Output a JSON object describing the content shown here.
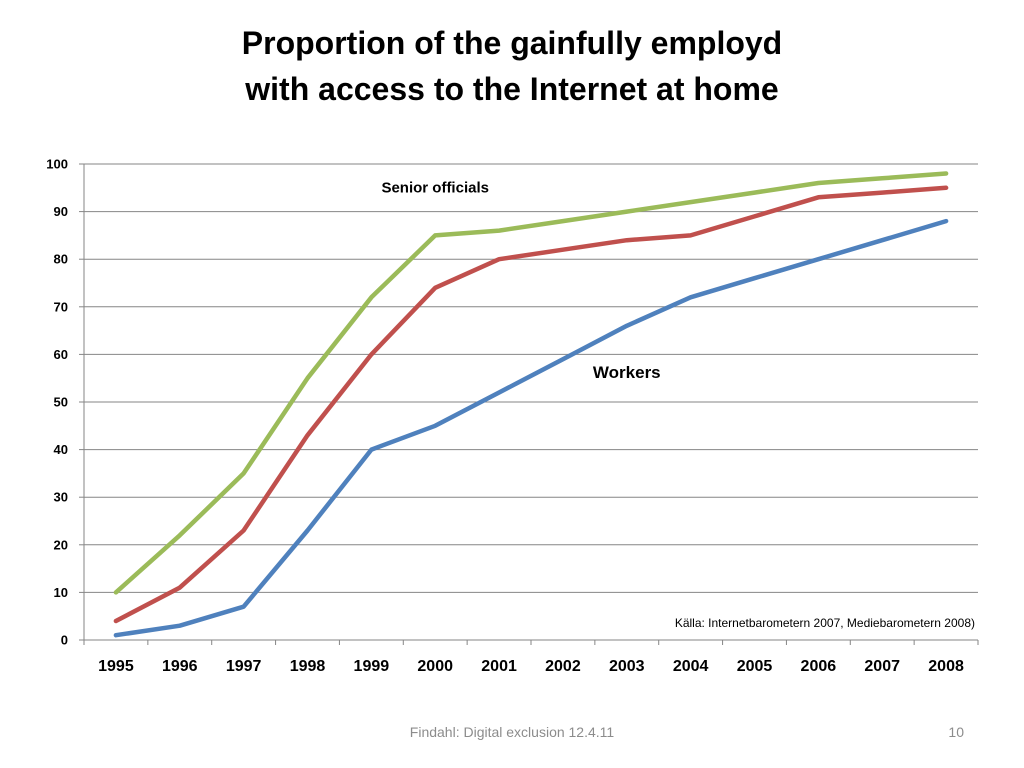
{
  "slide": {
    "title_line1": "Proportion of the gainfully employd",
    "title_line2": "with access to the Internet at home",
    "footer": "Findahl: Digital exclusion 12.4.11",
    "page_number": "10"
  },
  "chart_data": {
    "type": "line",
    "title": "Proportion of the gainfully employd with access to the Internet at home",
    "xlabel": "",
    "ylabel": "",
    "x": [
      "1995",
      "1996",
      "1997",
      "1998",
      "1999",
      "2000",
      "2001",
      "2002",
      "2003",
      "2004",
      "2005",
      "2006",
      "2007",
      "2008"
    ],
    "ylim": [
      0,
      100
    ],
    "yticks": [
      0,
      10,
      20,
      30,
      40,
      50,
      60,
      70,
      80,
      90,
      100
    ],
    "grid": true,
    "series": [
      {
        "key": "green",
        "color": "#9bbb59",
        "values": [
          10,
          22,
          35,
          55,
          72,
          85,
          86,
          88,
          90,
          92,
          94,
          96,
          97,
          98
        ]
      },
      {
        "key": "red",
        "color": "#c0504d",
        "values": [
          4,
          11,
          23,
          43,
          60,
          74,
          80,
          82,
          84,
          85,
          89,
          93,
          94,
          95
        ]
      },
      {
        "key": "blue",
        "color": "#4f81bd",
        "values": [
          1,
          3,
          7,
          23,
          40,
          45,
          52,
          59,
          66,
          72,
          76,
          80,
          84,
          88
        ]
      }
    ],
    "annotations": [
      {
        "text": "Senior officials",
        "x": "2000",
        "y": 94
      },
      {
        "text": "Workers",
        "x": "2003",
        "y": 55
      }
    ],
    "source": "Källa: Internetbarometern 2007, Mediebarometern 2008)"
  }
}
